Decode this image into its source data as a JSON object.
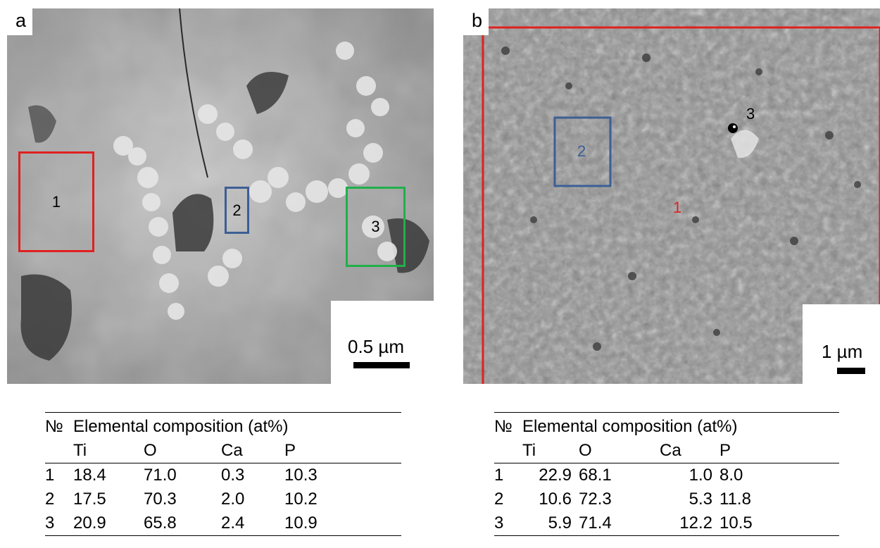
{
  "panel_a": {
    "letter": "a",
    "scale_label": "0.5 µm",
    "regions": [
      {
        "label": "1",
        "color": "#e02020"
      },
      {
        "label": "2",
        "color": "#3c5f95"
      },
      {
        "label": "3",
        "color": "#20b04a"
      }
    ]
  },
  "panel_b": {
    "letter": "b",
    "scale_label": "1 µm",
    "markers": [
      {
        "label": "1",
        "color": "#e02020"
      },
      {
        "label": "2",
        "color": "#3c5f95"
      },
      {
        "label": "3",
        "color": "#000000"
      }
    ]
  },
  "table_a": {
    "no_header": "№",
    "title": "Elemental composition (at%)",
    "elements": [
      "Ti",
      "O",
      "Ca",
      "P"
    ],
    "rows": [
      {
        "no": "1",
        "values": [
          "18.4",
          "71.0",
          "0.3",
          "10.3"
        ]
      },
      {
        "no": "2",
        "values": [
          "17.5",
          "70.3",
          "2.0",
          "10.2"
        ]
      },
      {
        "no": "3",
        "values": [
          "20.9",
          "65.8",
          "2.4",
          "10.9"
        ]
      }
    ]
  },
  "table_b": {
    "no_header": "№",
    "title": "Elemental composition (at%)",
    "elements": [
      "Ti",
      "O",
      "Ca",
      "P"
    ],
    "rows": [
      {
        "no": "1",
        "values": [
          "22.9",
          "68.1",
          "1.0",
          "8.0"
        ]
      },
      {
        "no": "2",
        "values": [
          "10.6",
          "72.3",
          "5.3",
          "11.8"
        ]
      },
      {
        "no": "3",
        "values": [
          "5.9",
          "71.4",
          "12.2",
          "10.5"
        ]
      }
    ]
  }
}
